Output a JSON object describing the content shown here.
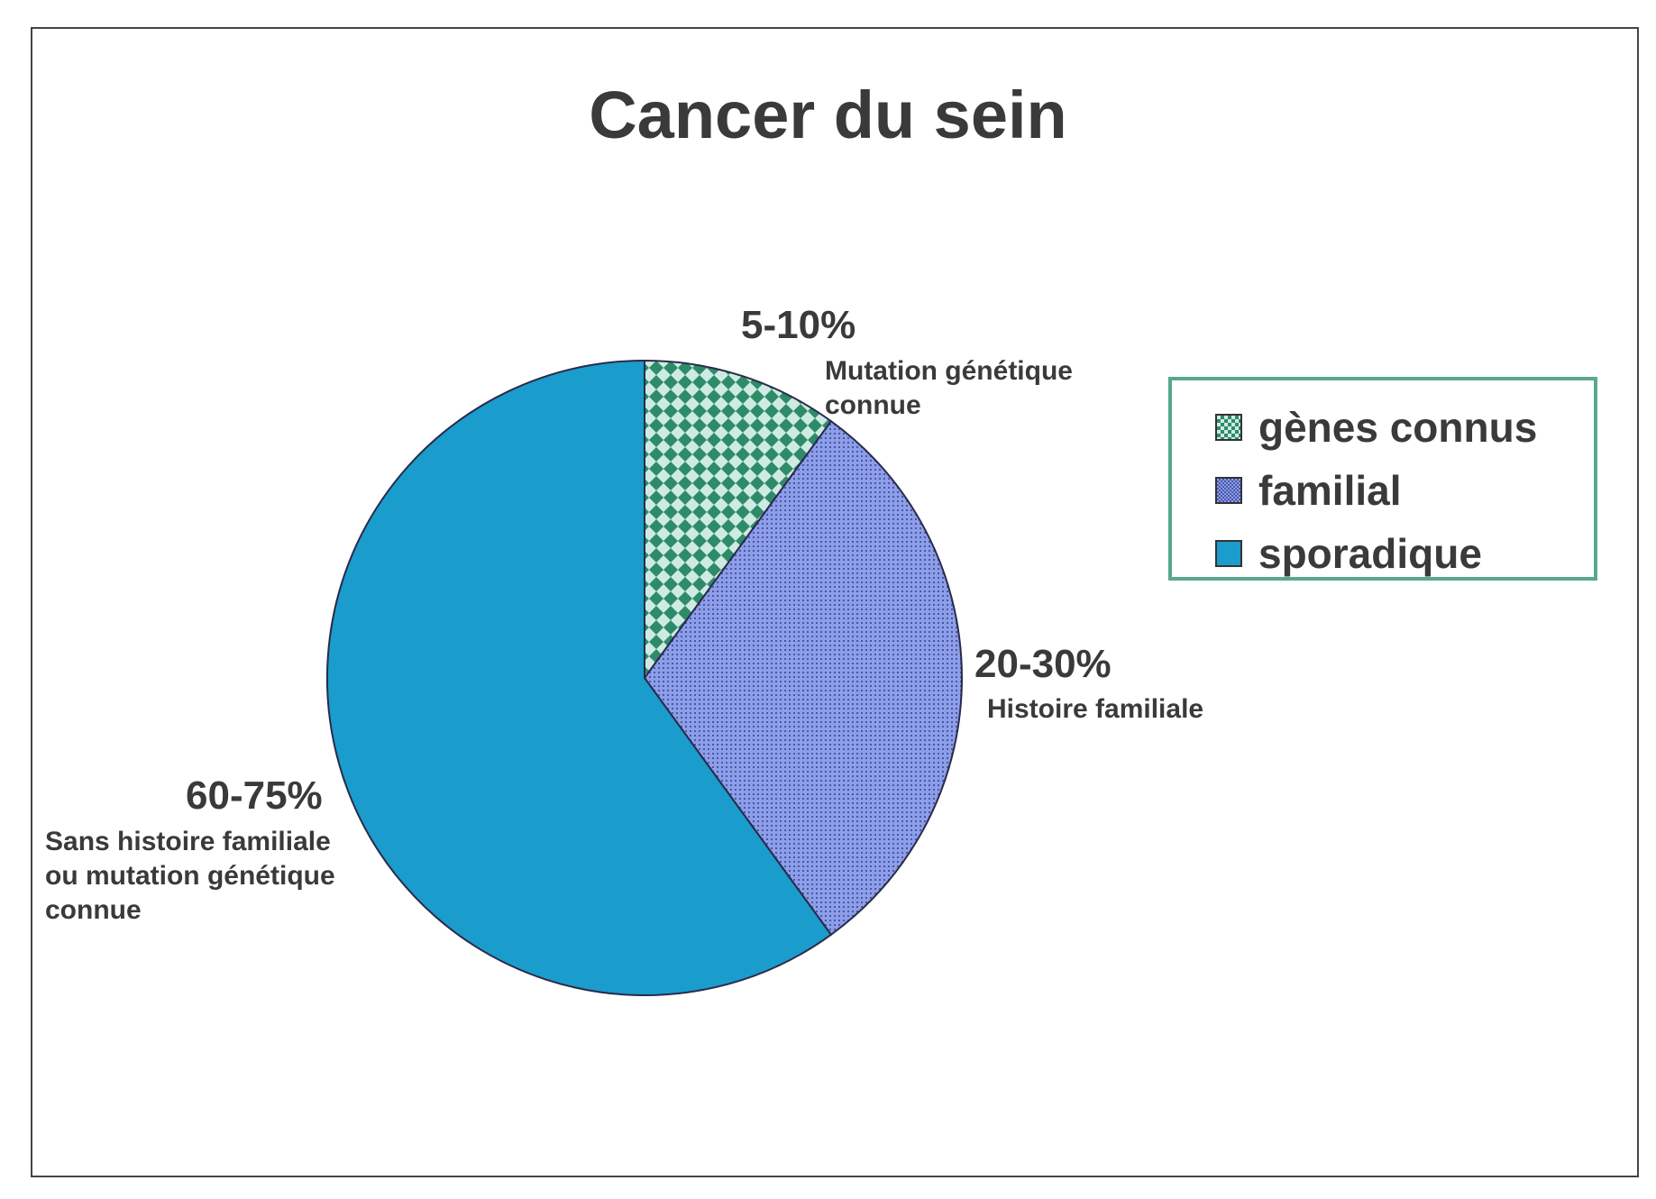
{
  "colors": {
    "genes_bg": "#cdebe2",
    "genes_fg": "#2e8b6a",
    "familial_bg": "#8d9ee8",
    "familial_fg": "#4a56a8",
    "sporadique": "#1a9ccc",
    "legend_border": "#5aa88a"
  },
  "chart_data": {
    "type": "pie",
    "title": "Cancer du sein",
    "slices": [
      {
        "legend": "gènes connus",
        "range_label": "5-10%",
        "value": 10,
        "description": [
          "Mutation génétique",
          "connue"
        ],
        "pattern": "checker"
      },
      {
        "legend": "familial",
        "range_label": "20-30%",
        "value": 30,
        "description": [
          "Histoire familiale"
        ],
        "pattern": "fine"
      },
      {
        "legend": "sporadique",
        "range_label": "60-75%",
        "value": 60,
        "description": [
          "Sans histoire familiale",
          "ou mutation génétique",
          "connue"
        ],
        "pattern": "solid"
      }
    ],
    "legend_position": "right"
  }
}
